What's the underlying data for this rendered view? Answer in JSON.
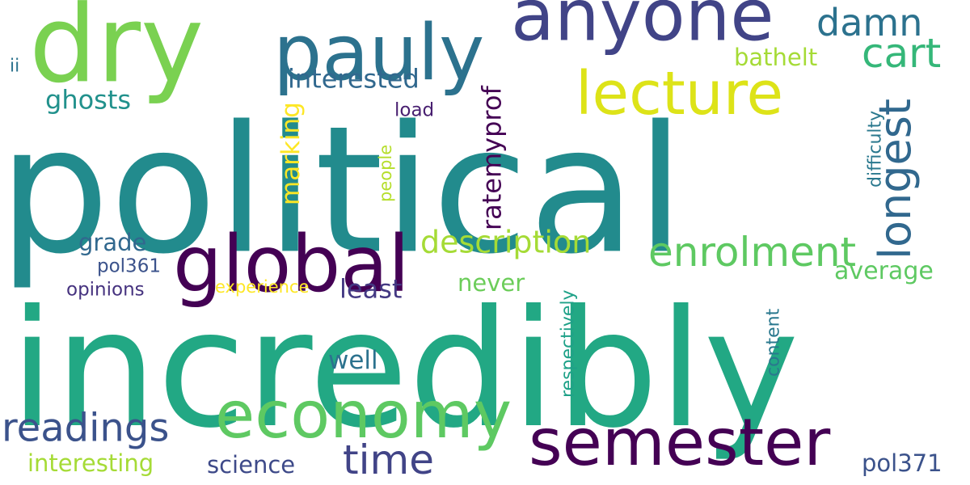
{
  "words": [
    {
      "text": "political",
      "color": "#228b8d"
    },
    {
      "text": "incredibly",
      "color": "#22a884"
    },
    {
      "text": "dry",
      "color": "#7ad151"
    },
    {
      "text": "pauly",
      "color": "#2c728e"
    },
    {
      "text": "anyone",
      "color": "#414487"
    },
    {
      "text": "lecture",
      "color": "#dde318"
    },
    {
      "text": "global",
      "color": "#440154"
    },
    {
      "text": "economy",
      "color": "#5ec962"
    },
    {
      "text": "semester",
      "color": "#440154"
    },
    {
      "text": "damn",
      "color": "#2c728e"
    },
    {
      "text": "cart",
      "color": "#35b779"
    },
    {
      "text": "longest",
      "color": "#31688e"
    },
    {
      "text": "enrolment",
      "color": "#5ec962"
    },
    {
      "text": "description",
      "color": "#a5db36"
    },
    {
      "text": "readings",
      "color": "#3b528b"
    },
    {
      "text": "time",
      "color": "#414487"
    },
    {
      "text": "interested",
      "color": "#31688e"
    },
    {
      "text": "bathelt",
      "color": "#a5db36"
    },
    {
      "text": "ghosts",
      "color": "#21918c"
    },
    {
      "text": "marking",
      "color": "#fde725"
    },
    {
      "text": "ratemyprof",
      "color": "#440154"
    },
    {
      "text": "load",
      "color": "#481f70"
    },
    {
      "text": "people",
      "color": "#b5de2b"
    },
    {
      "text": "difficulty",
      "color": "#2a788e"
    },
    {
      "text": "ii",
      "color": "#2c728e"
    },
    {
      "text": "grade",
      "color": "#31688e"
    },
    {
      "text": "pol361",
      "color": "#3b528b"
    },
    {
      "text": "opinions",
      "color": "#46337f"
    },
    {
      "text": "experience",
      "color": "#fde725"
    },
    {
      "text": "least",
      "color": "#443983"
    },
    {
      "text": "never",
      "color": "#6ccd5a"
    },
    {
      "text": "average",
      "color": "#5ec962"
    },
    {
      "text": "respectively",
      "color": "#1fa188"
    },
    {
      "text": "content",
      "color": "#2a788e"
    },
    {
      "text": "well",
      "color": "#2c728e"
    },
    {
      "text": "interesting",
      "color": "#a5db36"
    },
    {
      "text": "science",
      "color": "#3e4a89"
    },
    {
      "text": "pol371",
      "color": "#3b528b"
    }
  ]
}
